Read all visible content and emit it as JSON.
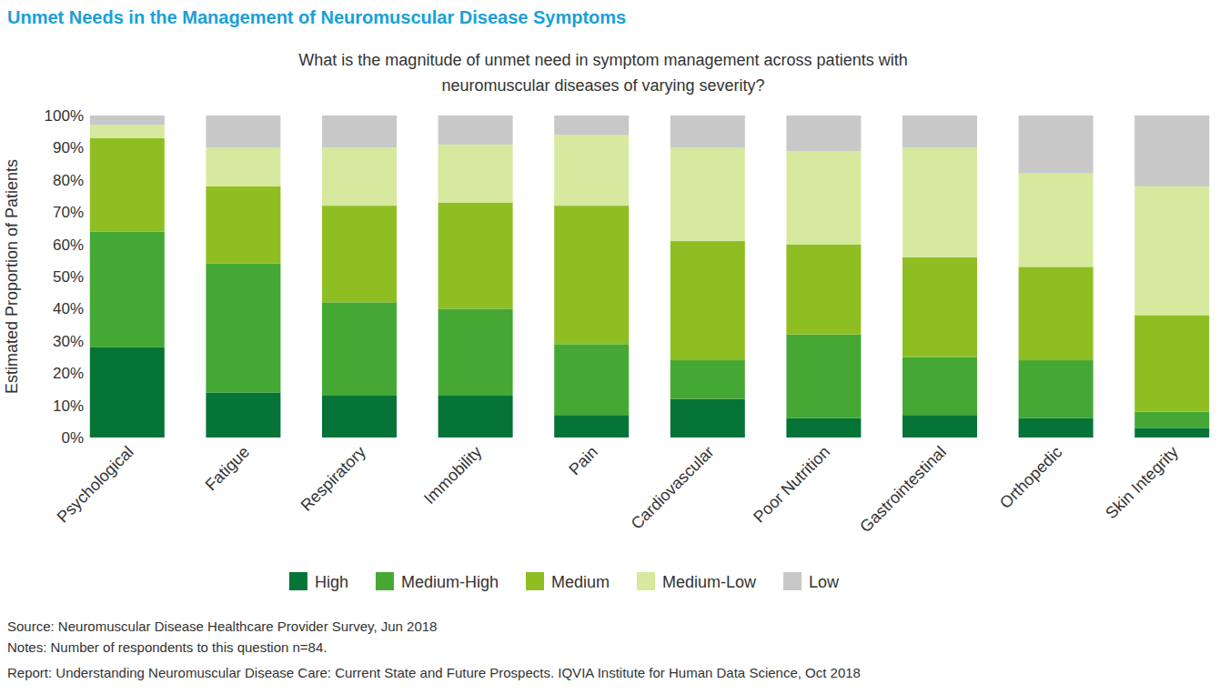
{
  "chart_data": {
    "type": "bar",
    "stacked": true,
    "grid": false,
    "data_labels": false,
    "legend": "bottom",
    "title": "Unmet Needs in the Management of Neuromuscular Disease Symptoms",
    "subtitle": "What is the magnitude of unmet need in symptom management across patients with neuromuscular diseases of varying severity?",
    "y_label": "Estimated Proportion of Patients",
    "footnotes": [
      "Source: Neuromuscular Disease Healthcare Provider Survey, Jun 2018",
      "Notes: Number of respondents to this question n=84.",
      "Report: Understanding Neuromuscular Disease Care: Current State and Future Prospects. IQVIA Institute for Human Data Science, Oct 2018"
    ],
    "categories": [
      "Psychological",
      "Fatigue",
      "Respiratory",
      "Immobility",
      "Pain",
      "Cardiovascular",
      "Poor Nutrition",
      "Gastrointestinal",
      "Orthopedic",
      "Skin Integrity"
    ],
    "series": [
      {
        "name": "High",
        "color": "#077437",
        "values": [
          28,
          14,
          13,
          13,
          7,
          12,
          6,
          7,
          6,
          3
        ]
      },
      {
        "name": "Medium-High",
        "color": "#45a835",
        "values": [
          36,
          40,
          29,
          27,
          22,
          12,
          26,
          18,
          18,
          5
        ]
      },
      {
        "name": "Medium",
        "color": "#8fbe23",
        "values": [
          29,
          24,
          30,
          33,
          43,
          37,
          28,
          31,
          29,
          30
        ]
      },
      {
        "name": "Medium-Low",
        "color": "#d6e99e",
        "values": [
          4,
          12,
          18,
          18,
          22,
          29,
          29,
          34,
          29,
          40
        ]
      },
      {
        "name": "Low",
        "color": "#c8c8c8",
        "values": [
          3,
          10,
          10,
          9,
          6,
          10,
          11,
          10,
          18,
          22
        ]
      }
    ],
    "ylim": [
      0,
      100
    ],
    "yticks": [
      {
        "value": 0,
        "label": "0%"
      },
      {
        "value": 10,
        "label": "10%"
      },
      {
        "value": 20,
        "label": "20%"
      },
      {
        "value": 30,
        "label": "30%"
      },
      {
        "value": 40,
        "label": "40%"
      },
      {
        "value": 50,
        "label": "50%"
      },
      {
        "value": 60,
        "label": "60%"
      },
      {
        "value": 70,
        "label": "70%"
      },
      {
        "value": 80,
        "label": "80%"
      },
      {
        "value": 90,
        "label": "90%"
      },
      {
        "value": 100,
        "label": "100%"
      }
    ]
  }
}
